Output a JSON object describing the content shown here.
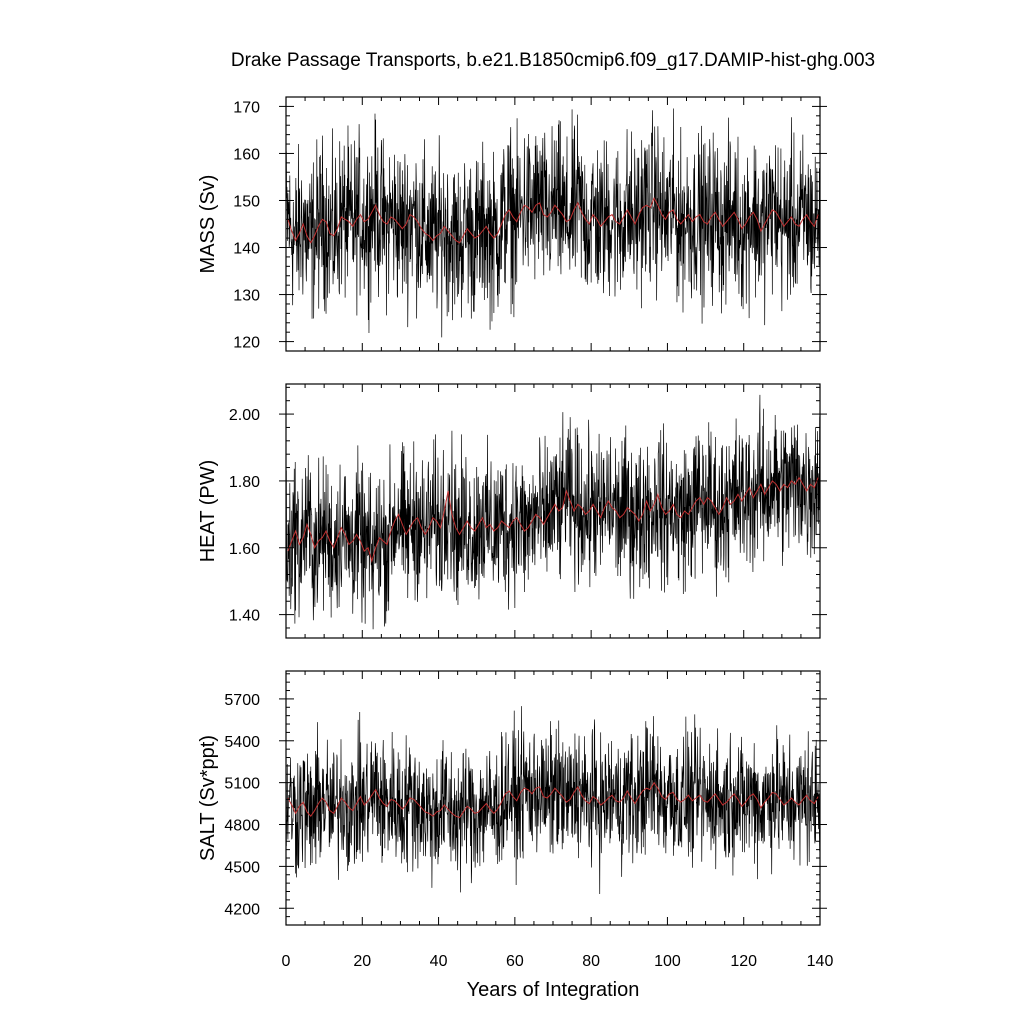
{
  "chart_data": {
    "type": "line",
    "title": "Drake Passage Transports, b.e21.B1850cmip6.f09_g17.DAMIP-hist-ghg.003",
    "xlabel": "Years of Integration",
    "xlim": [
      0,
      140
    ],
    "xticks": [
      0,
      20,
      40,
      60,
      80,
      100,
      120,
      140
    ],
    "grid": false,
    "legend": "none",
    "series_colors": {
      "monthly": "#000000",
      "annual_mean": "#c03030"
    },
    "panels": [
      {
        "ylabel": "MASS (Sv)",
        "ylim": [
          118,
          172
        ],
        "yticks": [
          120,
          130,
          140,
          150,
          160,
          170
        ],
        "ytick_labels": [
          "120",
          "130",
          "140",
          "150",
          "160",
          "170"
        ],
        "monthly": {
          "mean": 145.5,
          "amplitude": 8.5,
          "min": 119,
          "max": 171
        },
        "annual_mean_values": [
          146.0,
          143.5,
          141.5,
          143.0,
          145.0,
          142.5,
          141.0,
          142.5,
          144.5,
          146.0,
          145.5,
          143.0,
          142.5,
          144.0,
          146.5,
          146.0,
          145.5,
          144.5,
          146.0,
          147.0,
          145.5,
          146.0,
          147.5,
          149.0,
          147.0,
          145.5,
          145.0,
          146.5,
          146.0,
          145.0,
          144.0,
          145.0,
          147.0,
          146.5,
          145.5,
          144.0,
          143.0,
          142.5,
          141.5,
          142.5,
          143.0,
          144.5,
          143.5,
          142.5,
          141.5,
          141.0,
          142.5,
          144.0,
          143.0,
          142.0,
          142.5,
          143.5,
          144.5,
          143.0,
          142.0,
          143.0,
          145.0,
          147.0,
          148.0,
          146.5,
          145.5,
          147.5,
          149.0,
          148.5,
          147.5,
          149.0,
          149.5,
          147.0,
          146.5,
          147.5,
          149.0,
          148.0,
          147.0,
          145.5,
          146.0,
          148.0,
          149.5,
          147.5,
          146.0,
          145.0,
          147.0,
          146.0,
          144.5,
          145.5,
          146.5,
          147.0,
          145.5,
          145.0,
          146.5,
          148.0,
          146.5,
          145.0,
          147.0,
          148.5,
          149.0,
          148.5,
          150.5,
          149.0,
          147.0,
          146.0,
          147.5,
          148.0,
          146.0,
          145.0,
          146.0,
          147.0,
          145.5,
          146.5,
          147.0,
          145.5,
          145.0,
          146.5,
          147.5,
          146.0,
          144.5,
          145.5,
          146.5,
          147.5,
          146.0,
          144.0,
          145.0,
          146.5,
          147.5,
          146.0,
          143.5,
          145.0,
          146.5,
          148.0,
          147.5,
          146.0,
          144.5,
          145.5,
          146.5,
          145.0,
          144.5,
          146.0,
          147.0,
          145.5,
          144.5,
          147.0
        ]
      },
      {
        "ylabel": "HEAT (PW)",
        "ylim": [
          1.33,
          2.09
        ],
        "yticks": [
          1.4,
          1.6,
          1.8,
          2.0
        ],
        "ytick_labels": [
          "1.40",
          "1.60",
          "1.80",
          "2.00"
        ],
        "monthly": {
          "mean_start": 1.61,
          "mean_end": 1.77,
          "amplitude": 0.11,
          "min": 1.34,
          "max": 2.08
        },
        "annual_mean_values": [
          1.59,
          1.62,
          1.65,
          1.61,
          1.63,
          1.67,
          1.64,
          1.6,
          1.62,
          1.63,
          1.65,
          1.62,
          1.6,
          1.63,
          1.66,
          1.64,
          1.61,
          1.62,
          1.64,
          1.62,
          1.59,
          1.6,
          1.56,
          1.6,
          1.63,
          1.62,
          1.61,
          1.65,
          1.68,
          1.7,
          1.67,
          1.64,
          1.66,
          1.68,
          1.69,
          1.66,
          1.64,
          1.66,
          1.69,
          1.68,
          1.66,
          1.71,
          1.77,
          1.7,
          1.66,
          1.64,
          1.66,
          1.68,
          1.66,
          1.65,
          1.67,
          1.69,
          1.66,
          1.67,
          1.65,
          1.66,
          1.68,
          1.67,
          1.66,
          1.68,
          1.69,
          1.67,
          1.65,
          1.66,
          1.68,
          1.7,
          1.69,
          1.67,
          1.69,
          1.71,
          1.73,
          1.71,
          1.72,
          1.77,
          1.74,
          1.71,
          1.73,
          1.72,
          1.7,
          1.71,
          1.73,
          1.71,
          1.69,
          1.72,
          1.74,
          1.72,
          1.71,
          1.69,
          1.7,
          1.72,
          1.71,
          1.7,
          1.68,
          1.7,
          1.74,
          1.71,
          1.73,
          1.76,
          1.72,
          1.7,
          1.71,
          1.73,
          1.7,
          1.69,
          1.71,
          1.7,
          1.72,
          1.74,
          1.75,
          1.73,
          1.75,
          1.74,
          1.72,
          1.7,
          1.72,
          1.75,
          1.73,
          1.74,
          1.76,
          1.74,
          1.76,
          1.78,
          1.75,
          1.77,
          1.79,
          1.76,
          1.78,
          1.8,
          1.79,
          1.77,
          1.79,
          1.78,
          1.8,
          1.79,
          1.81,
          1.79,
          1.77,
          1.79,
          1.78,
          1.81
        ]
      },
      {
        "ylabel": "SALT (Sv*ppt)",
        "ylim": [
          4080,
          5900
        ],
        "yticks": [
          4200,
          4500,
          4800,
          5100,
          5400,
          5700
        ],
        "ytick_labels": [
          "4200",
          "4500",
          "4800",
          "5100",
          "5400",
          "5700"
        ],
        "monthly": {
          "mean": 4975,
          "amplitude": 230,
          "min": 4100,
          "max": 5880
        },
        "annual_mean_values": [
          4990,
          4940,
          4880,
          4930,
          4960,
          4890,
          4860,
          4900,
          4950,
          4990,
          4960,
          4900,
          4880,
          4930,
          4990,
          4960,
          4920,
          4900,
          4950,
          5000,
          4940,
          4970,
          5010,
          5050,
          4990,
          4950,
          4930,
          4980,
          4970,
          4940,
          4910,
          4940,
          4990,
          4980,
          4950,
          4920,
          4890,
          4880,
          4860,
          4890,
          4900,
          4940,
          4910,
          4880,
          4860,
          4850,
          4890,
          4930,
          4910,
          4880,
          4890,
          4920,
          4950,
          4910,
          4880,
          4910,
          4960,
          5020,
          5040,
          5000,
          4970,
          5030,
          5060,
          5050,
          5020,
          5060,
          5070,
          5000,
          4990,
          5020,
          5060,
          5030,
          5000,
          4960,
          4980,
          5030,
          5070,
          5010,
          4970,
          4950,
          5000,
          4980,
          4940,
          4960,
          4990,
          5010,
          4970,
          4960,
          4990,
          5040,
          4990,
          4950,
          5000,
          5040,
          5060,
          5050,
          5100,
          5060,
          5000,
          4980,
          5020,
          5030,
          4980,
          4960,
          4980,
          5010,
          4970,
          4990,
          5010,
          4970,
          4960,
          4990,
          5020,
          4980,
          4940,
          4960,
          4990,
          5020,
          4980,
          4930,
          4960,
          5000,
          5020,
          4980,
          4920,
          4960,
          4990,
          5030,
          5020,
          4980,
          4940,
          4960,
          4990,
          4960,
          4940,
          4980,
          5010,
          4970,
          4950,
          5000
        ]
      }
    ]
  }
}
